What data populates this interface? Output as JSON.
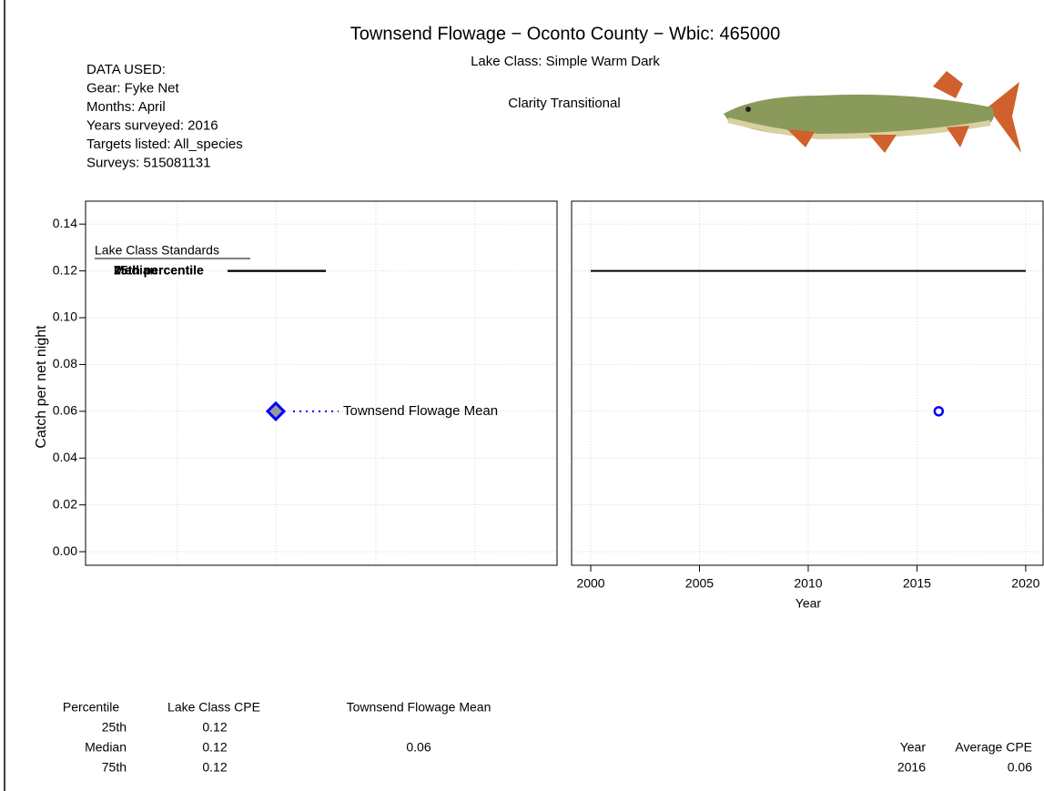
{
  "header": {
    "title": "Townsend Flowage − Oconto County − Wbic: 465000",
    "lake_class": "Lake Class: Simple Warm Dark",
    "clarity": "Clarity Transitional",
    "data_used": [
      "DATA USED:",
      "Gear: Fyke Net",
      "Months: April",
      "Years surveyed: 2016",
      "Targets listed: All_species",
      "Surveys: 515081131"
    ]
  },
  "chart_data": [
    {
      "type": "standards",
      "y_label": "Catch per net night",
      "ylim": [
        -0.0058,
        0.1498
      ],
      "yticks": [
        {
          "value": 0,
          "label": "0.00"
        },
        0.02,
        0.04,
        0.06,
        0.08,
        {
          "value": 0.1,
          "label": "0.10"
        },
        0.12,
        0.14
      ],
      "grid": true,
      "legend_title": "Lake Class Standards",
      "standards": [
        {
          "label": "25th percentile",
          "value": 0.12
        },
        {
          "label": "Median",
          "value": 0.12
        },
        {
          "label": "75th percentile",
          "value": 0.12
        }
      ],
      "mean": {
        "label": "Townsend Flowage Mean",
        "value": 0.06,
        "color": "#0000ff"
      }
    },
    {
      "type": "scatter",
      "x_label": "Year",
      "xlim": [
        1999.12,
        2020.8
      ],
      "xticks": [
        2000,
        2005,
        2010,
        2015,
        2020
      ],
      "ylim": [
        -0.0058,
        0.1498
      ],
      "yticks": [
        {
          "value": 0,
          "label": "0.00"
        },
        0.02,
        0.04,
        0.06,
        0.08,
        {
          "value": 0.1,
          "label": "0.10"
        },
        0.12,
        0.14
      ],
      "grid": true,
      "x": [
        2016
      ],
      "values": [
        0.06
      ],
      "color": "#0000ff",
      "reference_line": {
        "x": [
          2000,
          2020
        ],
        "values": [
          0.12,
          0.12
        ]
      }
    }
  ],
  "tables": [
    {
      "columns": [
        "Percentile",
        "Lake Class CPE",
        "Townsend Flowage Mean"
      ],
      "rows": [
        [
          "25th",
          0.12,
          null
        ],
        [
          "Median",
          0.12,
          0.06
        ],
        [
          "75th",
          0.12,
          null
        ]
      ]
    },
    {
      "columns": [
        "Year",
        "Average CPE"
      ],
      "rows": [
        [
          2016,
          0.06
        ]
      ]
    }
  ]
}
